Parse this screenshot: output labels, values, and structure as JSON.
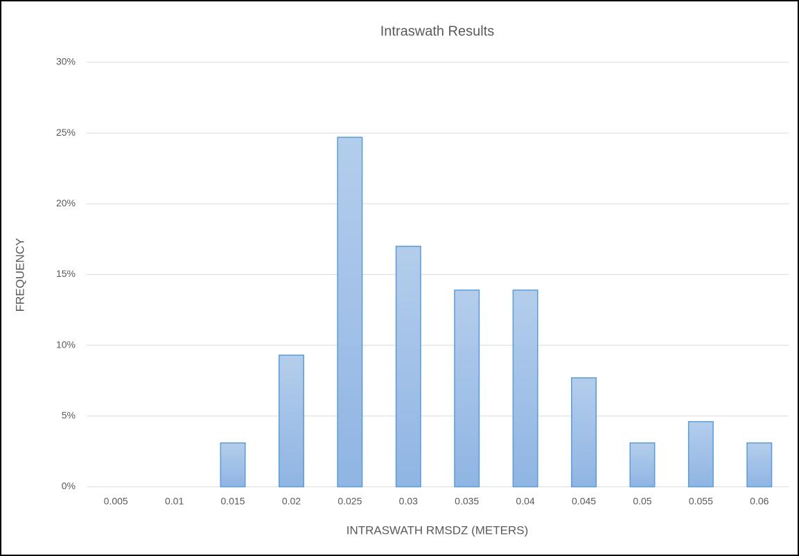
{
  "chart_data": {
    "type": "bar",
    "title": "Intraswath Results",
    "xlabel": "INTRASWATH RMSDZ (METERS)",
    "ylabel": "FREQUENCY",
    "categories": [
      "0.005",
      "0.01",
      "0.015",
      "0.02",
      "0.025",
      "0.03",
      "0.035",
      "0.04",
      "0.045",
      "0.05",
      "0.055",
      "0.06"
    ],
    "values": [
      0,
      0,
      3.1,
      9.3,
      24.7,
      17.0,
      13.9,
      13.9,
      7.7,
      3.1,
      4.6,
      3.1
    ],
    "color": "#5b9bd5",
    "ylim": [
      0,
      30
    ],
    "yticks": [
      {
        "value": 0,
        "label": "0%"
      },
      {
        "value": 5,
        "label": "5%"
      },
      {
        "value": 10,
        "label": "10%"
      },
      {
        "value": 15,
        "label": "15%"
      },
      {
        "value": 20,
        "label": "20%"
      },
      {
        "value": 25,
        "label": "25%"
      },
      {
        "value": 30,
        "label": "30%"
      }
    ],
    "grid": true
  }
}
